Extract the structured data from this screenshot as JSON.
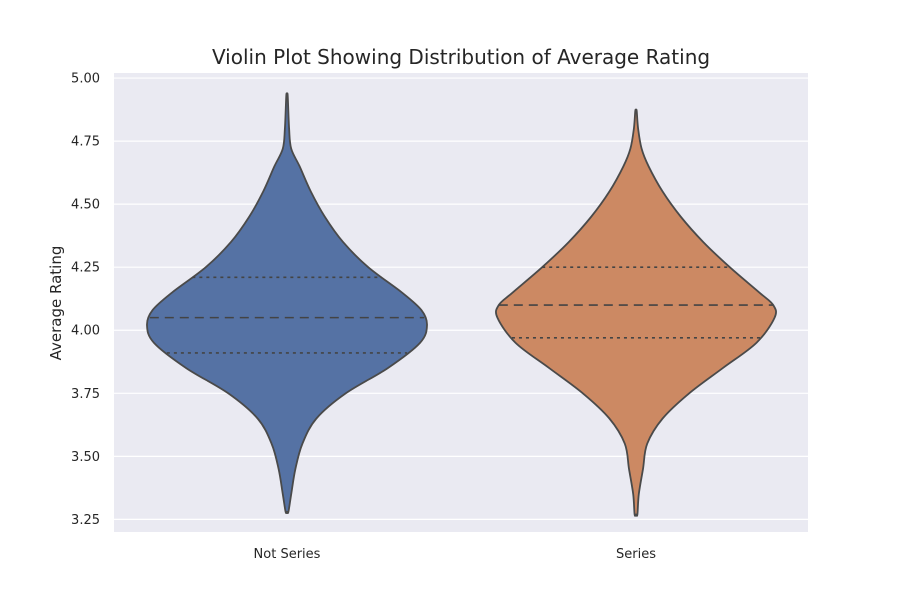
{
  "chart_data": {
    "type": "violin",
    "title": "Violin Plot Showing Distribution of Average Rating",
    "xlabel": "",
    "ylabel": "Average Rating",
    "ylim": [
      3.2,
      5.02
    ],
    "yticks": [
      "3.25",
      "3.50",
      "3.75",
      "4.00",
      "4.25",
      "4.50",
      "4.75",
      "5.00"
    ],
    "grid": true,
    "categories": [
      "Not Series",
      "Series"
    ],
    "series": [
      {
        "color": "#5572a4",
        "min": 3.28,
        "max": 4.93,
        "q1": 3.91,
        "median": 4.05,
        "q3": 4.21,
        "density": [
          [
            3.28,
            0.01
          ],
          [
            3.35,
            0.03
          ],
          [
            3.45,
            0.06
          ],
          [
            3.55,
            0.11
          ],
          [
            3.65,
            0.21
          ],
          [
            3.75,
            0.42
          ],
          [
            3.85,
            0.72
          ],
          [
            3.95,
            0.95
          ],
          [
            4.02,
            1.0
          ],
          [
            4.08,
            0.96
          ],
          [
            4.15,
            0.82
          ],
          [
            4.25,
            0.58
          ],
          [
            4.35,
            0.4
          ],
          [
            4.45,
            0.27
          ],
          [
            4.55,
            0.17
          ],
          [
            4.65,
            0.09
          ],
          [
            4.72,
            0.03
          ],
          [
            4.8,
            0.015
          ],
          [
            4.93,
            0.005
          ]
        ]
      },
      {
        "color": "#cc8963",
        "min": 3.27,
        "max": 4.87,
        "q1": 3.97,
        "median": 4.1,
        "q3": 4.25,
        "density": [
          [
            3.27,
            0.01
          ],
          [
            3.35,
            0.02
          ],
          [
            3.45,
            0.05
          ],
          [
            3.55,
            0.08
          ],
          [
            3.65,
            0.19
          ],
          [
            3.75,
            0.38
          ],
          [
            3.85,
            0.62
          ],
          [
            3.95,
            0.86
          ],
          [
            4.05,
            0.99
          ],
          [
            4.1,
            0.98
          ],
          [
            4.15,
            0.88
          ],
          [
            4.25,
            0.67
          ],
          [
            4.35,
            0.48
          ],
          [
            4.45,
            0.32
          ],
          [
            4.55,
            0.19
          ],
          [
            4.65,
            0.09
          ],
          [
            4.72,
            0.04
          ],
          [
            4.8,
            0.015
          ],
          [
            4.87,
            0.005
          ]
        ]
      }
    ]
  }
}
